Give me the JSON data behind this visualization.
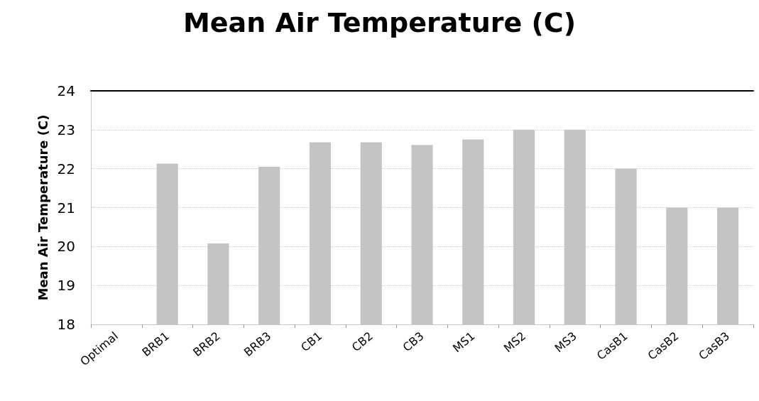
{
  "chart_data": {
    "type": "bar",
    "title": "Mean Air Temperature (C)",
    "ylabel": "Mean Air Temperature (C)",
    "categories": [
      "Optimal",
      "BRB1",
      "BRB2",
      "BRB3",
      "CB1",
      "CB2",
      "CB3",
      "MS1",
      "MS2",
      "MS3",
      "CasB1",
      "CasB2",
      "CasB3"
    ],
    "values": [
      null,
      22.13,
      20.08,
      22.05,
      22.68,
      22.68,
      22.61,
      22.75,
      23.0,
      23.0,
      22.0,
      21.0,
      21.0
    ],
    "color": "#c4c4c4",
    "ylim": [
      18,
      24
    ],
    "yticks": [
      18,
      19,
      20,
      21,
      22,
      23,
      24
    ],
    "grid": "y"
  }
}
